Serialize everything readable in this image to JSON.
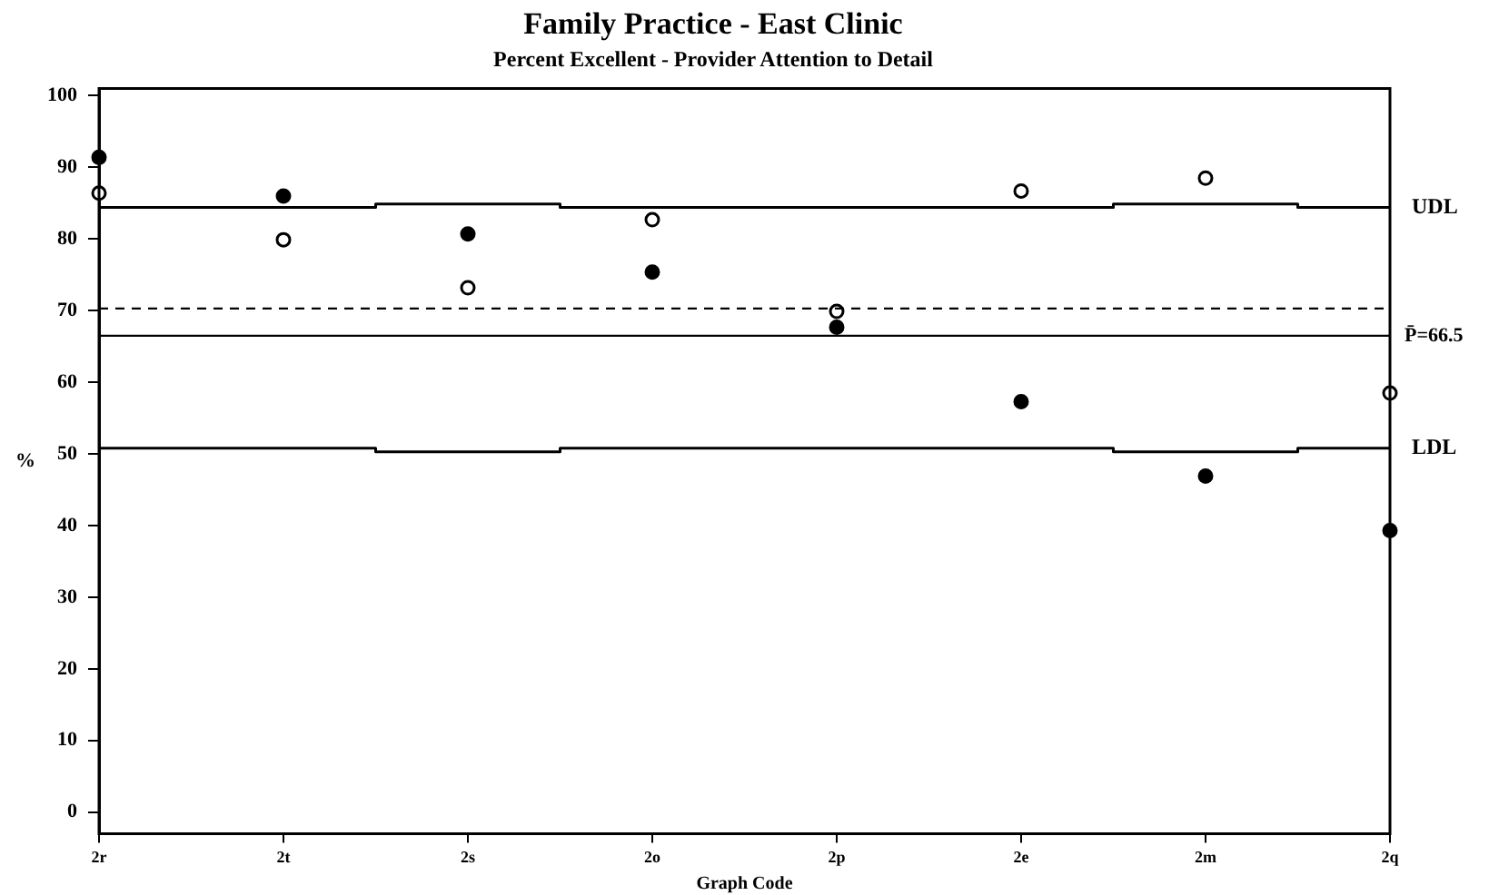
{
  "chart_data": {
    "type": "scatter",
    "title": "Family Practice - East Clinic",
    "subtitle": "Percent Excellent - Provider Attention to Detail",
    "xlabel": "Graph Code",
    "ylabel": "%",
    "categories": [
      "2r",
      "2t",
      "2s",
      "2o",
      "2p",
      "2e",
      "2m",
      "2q"
    ],
    "series": [
      {
        "color": "#000000",
        "marker": "circle",
        "values": [
          91.4,
          86.0,
          80.7,
          75.4,
          67.7,
          57.3,
          46.9,
          39.3
        ]
      },
      {
        "color": "#000000",
        "marker": "circle",
        "values": [
          86.4,
          79.9,
          73.2,
          82.7,
          69.9,
          86.7,
          88.5,
          58.5
        ]
      },
      {
        "type": "step",
        "name": "UDL",
        "color": "#000000",
        "values": [
          84.4,
          84.4,
          84.9,
          84.4,
          84.4,
          84.4,
          84.9,
          84.4
        ]
      },
      {
        "type": "step",
        "name": "LDL",
        "color": "#000000",
        "values": [
          50.8,
          50.8,
          50.3,
          50.8,
          50.8,
          50.8,
          50.3,
          50.8
        ]
      }
    ],
    "ref_lines": [
      {
        "axis": "y",
        "value": 66.5,
        "label": "P̄=66.5",
        "color": "#000000"
      },
      {
        "axis": "y",
        "value": 70.3,
        "color": "#000000",
        "line_style": "dashed"
      }
    ],
    "ylim": [
      -3,
      101
    ],
    "yticks": [
      0,
      10,
      20,
      30,
      40,
      50,
      60,
      70,
      80,
      90,
      100
    ]
  }
}
